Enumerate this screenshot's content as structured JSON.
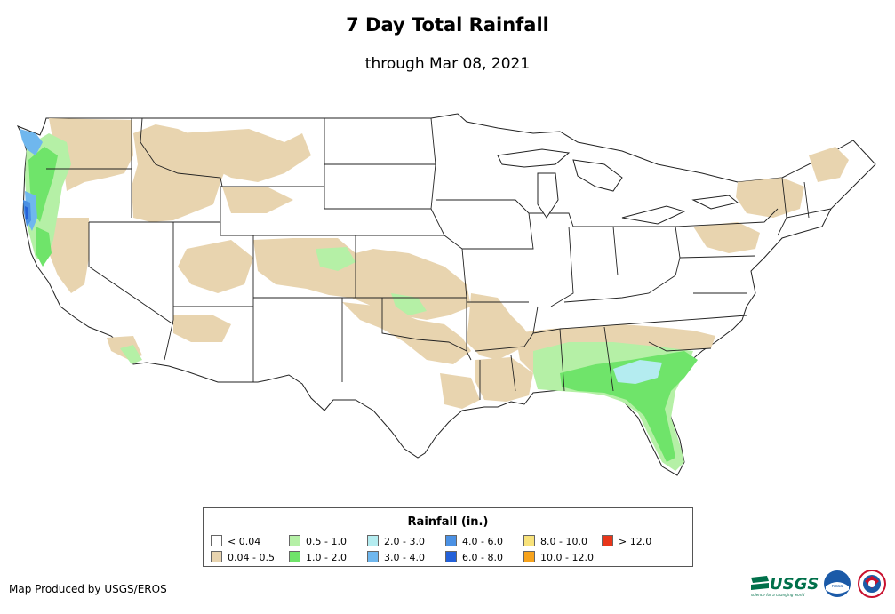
{
  "title": "7 Day Total Rainfall",
  "subtitle": "through Mar 08, 2021",
  "legend": {
    "title": "Rainfall (in.)",
    "items": [
      {
        "label": "< 0.04",
        "color": "#ffffff"
      },
      {
        "label": "0.04 - 0.5",
        "color": "#e8d4af"
      },
      {
        "label": "0.5 - 1.0",
        "color": "#b5f0a6"
      },
      {
        "label": "1.0 - 2.0",
        "color": "#6fe46a"
      },
      {
        "label": "2.0 - 3.0",
        "color": "#b4ecf0"
      },
      {
        "label": "3.0 - 4.0",
        "color": "#6fb7ee"
      },
      {
        "label": "4.0 - 6.0",
        "color": "#4b91e4"
      },
      {
        "label": "6.0 - 8.0",
        "color": "#2461d9"
      },
      {
        "label": "8.0 - 10.0",
        "color": "#f8e27a"
      },
      {
        "label": "10.0 - 12.0",
        "color": "#f7a31c"
      },
      {
        "label": "> 12.0",
        "color": "#e8361a"
      }
    ]
  },
  "credit": "Map Produced by USGS/EROS",
  "logos": {
    "usgs": "USGS",
    "usgs_tagline": "science for a changing world",
    "noaa": "noaa",
    "nws_icon": "national-weather-service-icon"
  }
}
